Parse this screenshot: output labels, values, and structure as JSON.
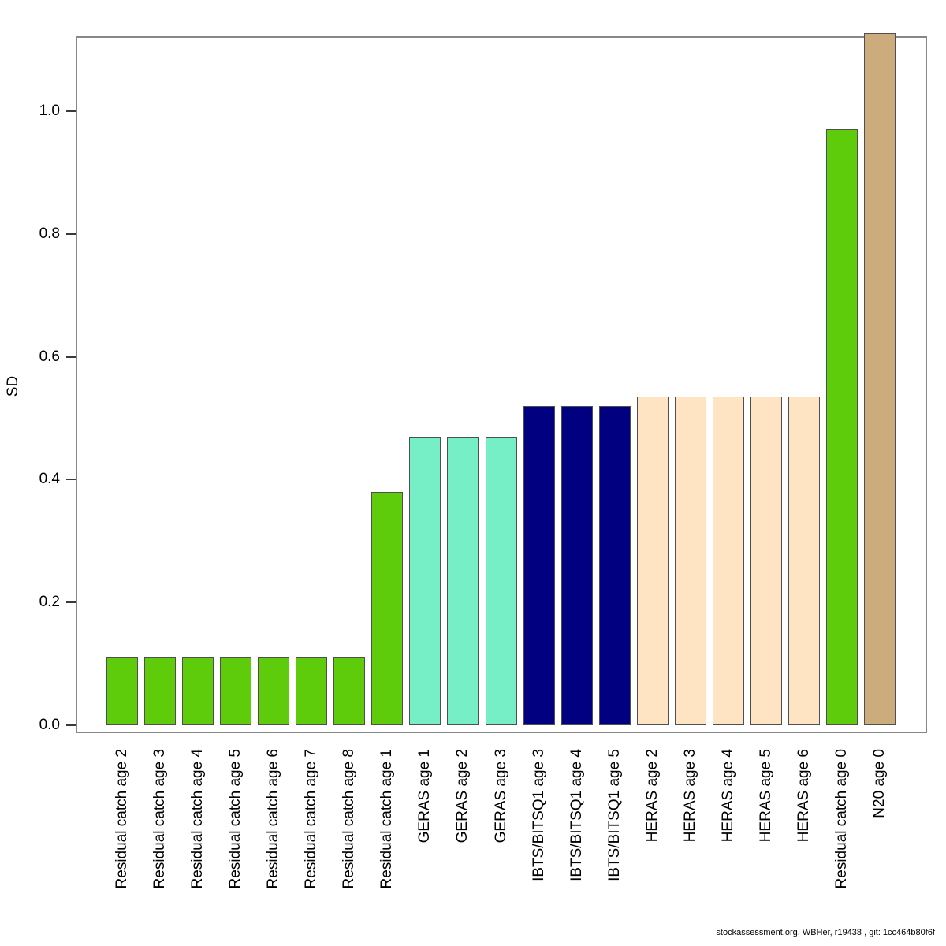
{
  "page": {
    "background": "#ffffff",
    "footer": "stockassessment.org, WBHer, r19438 , git: 1cc464b80f6f"
  },
  "chart_data": {
    "type": "bar",
    "title": "",
    "xlabel": "",
    "ylabel": "SD",
    "ylim": [
      0,
      1.12
    ],
    "grid": false,
    "legend": false,
    "axis_color": "#878787",
    "bar_border_color": "#4f4f4f",
    "yticks": [
      {
        "label": "0.0",
        "value": 0.0
      },
      {
        "label": "0.2",
        "value": 0.2
      },
      {
        "label": "0.4",
        "value": 0.4
      },
      {
        "label": "0.6",
        "value": 0.6
      },
      {
        "label": "0.8",
        "value": 0.8
      },
      {
        "label": "1.0",
        "value": 1.0
      }
    ],
    "categories": [
      "Residual catch age 2",
      "Residual catch age 3",
      "Residual catch age 4",
      "Residual catch age 5",
      "Residual catch age 6",
      "Residual catch age 7",
      "Residual catch age 8",
      "Residual catch age 1",
      "GERAS age 1",
      "GERAS age 2",
      "GERAS age 3",
      "IBTS/BITSQ1 age 3",
      "IBTS/BITSQ1 age 4",
      "IBTS/BITSQ1 age 5",
      "HERAS age 2",
      "HERAS age 3",
      "HERAS age 4",
      "HERAS age 5",
      "HERAS age 6",
      "Residual catch age 0",
      "N20 age 0"
    ],
    "values": [
      0.11,
      0.11,
      0.11,
      0.11,
      0.11,
      0.11,
      0.11,
      0.38,
      0.47,
      0.47,
      0.47,
      0.52,
      0.52,
      0.52,
      0.535,
      0.535,
      0.535,
      0.535,
      0.535,
      0.97,
      1.13
    ],
    "clipped": [
      false,
      false,
      false,
      false,
      false,
      false,
      false,
      false,
      false,
      false,
      false,
      false,
      false,
      false,
      false,
      false,
      false,
      false,
      false,
      false,
      true
    ],
    "colors": [
      "#5ECC0A",
      "#5ECC0A",
      "#5ECC0A",
      "#5ECC0A",
      "#5ECC0A",
      "#5ECC0A",
      "#5ECC0A",
      "#5ECC0A",
      "#76EEC6",
      "#76EEC6",
      "#76EEC6",
      "#000080",
      "#000080",
      "#000080",
      "#FFE4C4",
      "#FFE4C4",
      "#FFE4C4",
      "#FFE4C4",
      "#FFE4C4",
      "#5ECC0A",
      "#CCAB7C"
    ],
    "color_groups": [
      {
        "name": "Residual catch",
        "color": "#5ECC0A"
      },
      {
        "name": "GERAS",
        "color": "#76EEC6"
      },
      {
        "name": "IBTS/BITSQ1",
        "color": "#000080"
      },
      {
        "name": "HERAS",
        "color": "#FFE4C4"
      },
      {
        "name": "N20",
        "color": "#CCAB7C"
      }
    ]
  }
}
